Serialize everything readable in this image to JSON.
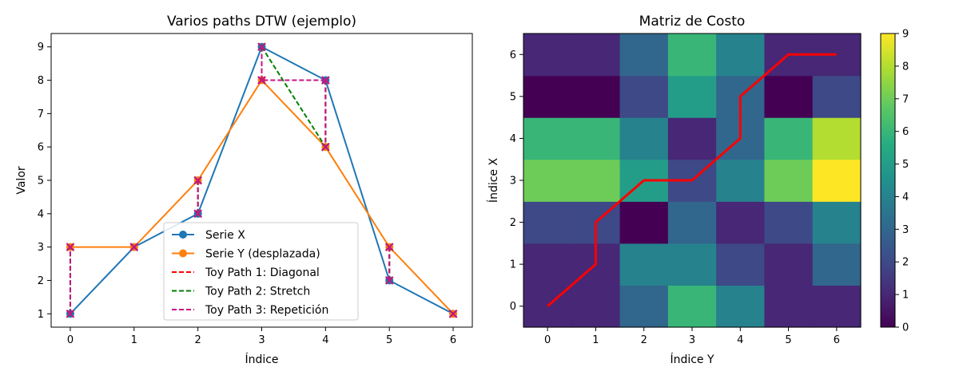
{
  "chart_data": [
    {
      "type": "line",
      "title": "Varios paths DTW (ejemplo)",
      "xlabel": "Índice",
      "ylabel": "Valor",
      "xlim": [
        -0.3,
        6.3
      ],
      "ylim": [
        0.6,
        9.4
      ],
      "xticks": [
        0,
        1,
        2,
        3,
        4,
        5,
        6
      ],
      "yticks": [
        1,
        2,
        3,
        4,
        5,
        6,
        7,
        8,
        9
      ],
      "legend_position": "bottom-center",
      "series": [
        {
          "name": "Serie X",
          "color": "#1f77b4",
          "style": "solid",
          "marker": "circle",
          "x": [
            0,
            1,
            2,
            3,
            4,
            5,
            6
          ],
          "values": [
            1,
            3,
            4,
            9,
            8,
            2,
            1
          ]
        },
        {
          "name": "Serie Y (desplazada)",
          "color": "#ff7f0e",
          "style": "solid",
          "marker": "circle",
          "x": [
            0,
            1,
            2,
            3,
            4,
            5,
            6
          ],
          "values": [
            3,
            3,
            5,
            8,
            6,
            3,
            1
          ]
        }
      ],
      "toy_paths": [
        {
          "name": "Toy Path 1: Diagonal",
          "color": "#ff0000",
          "pairs": [
            [
              0,
              0
            ],
            [
              1,
              1
            ],
            [
              2,
              2
            ],
            [
              3,
              3
            ],
            [
              4,
              4
            ],
            [
              5,
              5
            ],
            [
              6,
              6
            ]
          ]
        },
        {
          "name": "Toy Path 2: Stretch",
          "color": "#008000",
          "pairs": [
            [
              0,
              0
            ],
            [
              1,
              1
            ],
            [
              2,
              2
            ],
            [
              3,
              3
            ],
            [
              3,
              4
            ],
            [
              4,
              4
            ],
            [
              5,
              5
            ],
            [
              6,
              6
            ]
          ]
        },
        {
          "name": "Toy Path 3: Repetición",
          "color": "#c71585",
          "pairs": [
            [
              0,
              0
            ],
            [
              1,
              1
            ],
            [
              2,
              2
            ],
            [
              3,
              3
            ],
            [
              4,
              3
            ],
            [
              4,
              4
            ],
            [
              5,
              5
            ],
            [
              6,
              6
            ]
          ]
        }
      ]
    },
    {
      "type": "heatmap",
      "title": "Matriz de Costo",
      "xlabel": "Índice Y",
      "ylabel": "Índice X",
      "xticks": [
        0,
        1,
        2,
        3,
        4,
        5,
        6
      ],
      "yticks": [
        0,
        1,
        2,
        3,
        4,
        5,
        6
      ],
      "colormap": "viridis",
      "colorbar_range": [
        0,
        9
      ],
      "colorbar_ticks": [
        0,
        1,
        2,
        3,
        4,
        5,
        6,
        7,
        8,
        9
      ],
      "matrix": [
        [
          1,
          1,
          3,
          6,
          4,
          1,
          1
        ],
        [
          1,
          1,
          4,
          4,
          2,
          1,
          3
        ],
        [
          2,
          2,
          0,
          3,
          1,
          2,
          4
        ],
        [
          7,
          7,
          5,
          2,
          4,
          7,
          9
        ],
        [
          6,
          6,
          4,
          1,
          3,
          6,
          8
        ],
        [
          0,
          0,
          2,
          5,
          3,
          0,
          2
        ],
        [
          1,
          1,
          3,
          6,
          4,
          1,
          1
        ]
      ],
      "path": {
        "color": "#ff0000",
        "points": [
          [
            0,
            0
          ],
          [
            1,
            1
          ],
          [
            1,
            2
          ],
          [
            2,
            3
          ],
          [
            3,
            3
          ],
          [
            4,
            4
          ],
          [
            4,
            5
          ],
          [
            5,
            6
          ],
          [
            6,
            6
          ]
        ]
      }
    }
  ]
}
